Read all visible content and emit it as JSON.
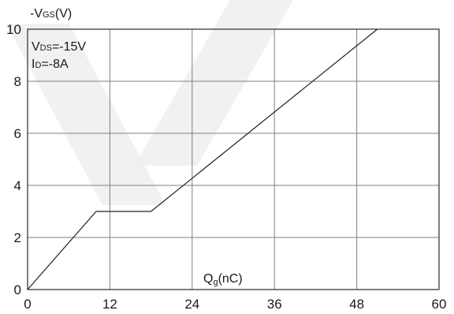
{
  "chart_data": {
    "type": "line",
    "ylabel": "-VGS(V)",
    "ylabel_parts": {
      "prefix": "-V",
      "sub": "GS",
      "suffix": "(V)"
    },
    "xlabel": "Qg(nC)",
    "xlabel_parts": {
      "prefix": "Q",
      "sub": "g",
      "suffix": "(nC)"
    },
    "annotations": [
      {
        "text": "VDS=-15V",
        "prefix": "V",
        "sub": "DS",
        "suffix": "=-15V"
      },
      {
        "text": "ID=-8A",
        "prefix": "I",
        "sub": "D",
        "suffix": "=-8A"
      }
    ],
    "xlim": [
      0,
      60
    ],
    "ylim": [
      0,
      10
    ],
    "xticks": [
      0,
      12,
      24,
      36,
      48,
      60
    ],
    "yticks": [
      0,
      2,
      4,
      6,
      8,
      10
    ],
    "grid": true,
    "series": [
      {
        "x": [
          0,
          10,
          18,
          51
        ],
        "y": [
          0,
          3,
          3,
          10
        ]
      }
    ]
  }
}
